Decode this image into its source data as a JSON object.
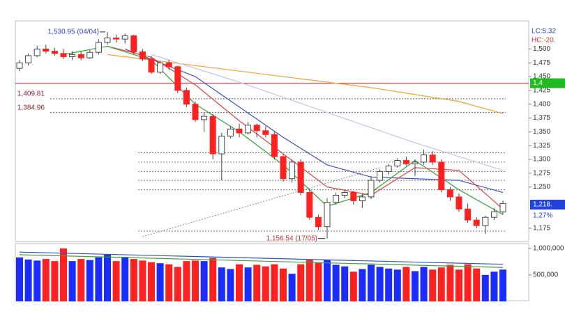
{
  "chart_data": {
    "type": "candlestick",
    "ohlc": {
      "open": [
        1465,
        1475,
        1488,
        1500,
        1496,
        1492,
        1486,
        1490,
        1484,
        1494,
        1512,
        1520,
        1518,
        1524,
        1495,
        1482,
        1458,
        1475,
        1468,
        1425,
        1400,
        1372,
        1378,
        1310,
        1342,
        1355,
        1348,
        1362,
        1352,
        1345,
        1305,
        1265,
        1295,
        1240,
        1195,
        1178,
        1222,
        1235,
        1240,
        1225,
        1232,
        1262,
        1278,
        1288,
        1298,
        1292,
        1295,
        1308,
        1295,
        1245,
        1232,
        1210,
        1190,
        1180,
        1195,
        1205
      ],
      "high": [
        1480,
        1492,
        1506,
        1508,
        1502,
        1500,
        1496,
        1495,
        1498,
        1518,
        1530.95,
        1526,
        1528,
        1526,
        1500,
        1488,
        1478,
        1480,
        1470,
        1430,
        1405,
        1385,
        1382,
        1348,
        1360,
        1365,
        1368,
        1365,
        1360,
        1350,
        1310,
        1300,
        1300,
        1245,
        1200,
        1230,
        1240,
        1245,
        1242,
        1238,
        1270,
        1282,
        1292,
        1302,
        1305,
        1300,
        1318,
        1315,
        1300,
        1250,
        1238,
        1220,
        1195,
        1198,
        1212,
        1225
      ],
      "low": [
        1460,
        1470,
        1485,
        1492,
        1488,
        1482,
        1480,
        1480,
        1482,
        1490,
        1508,
        1512,
        1510,
        1490,
        1478,
        1455,
        1455,
        1462,
        1420,
        1395,
        1368,
        1350,
        1300,
        1262,
        1338,
        1340,
        1345,
        1340,
        1340,
        1300,
        1260,
        1258,
        1235,
        1190,
        1172,
        1156.54,
        1218,
        1230,
        1218,
        1212,
        1228,
        1258,
        1272,
        1285,
        1288,
        1270,
        1290,
        1290,
        1240,
        1225,
        1205,
        1185,
        1175,
        1165,
        1190,
        1200
      ],
      "close": [
        1475,
        1488,
        1500,
        1496,
        1492,
        1486,
        1490,
        1484,
        1494,
        1512,
        1520,
        1518,
        1524,
        1495,
        1482,
        1458,
        1475,
        1468,
        1425,
        1400,
        1372,
        1378,
        1310,
        1342,
        1355,
        1348,
        1362,
        1352,
        1345,
        1305,
        1265,
        1295,
        1240,
        1195,
        1178,
        1222,
        1235,
        1240,
        1225,
        1232,
        1262,
        1278,
        1288,
        1298,
        1292,
        1295,
        1308,
        1295,
        1245,
        1232,
        1210,
        1190,
        1180,
        1195,
        1205,
        1220
      ]
    },
    "up_color": "#ffffff",
    "down_color": "#ff2020",
    "volume": [
      830000,
      790000,
      770000,
      800000,
      760000,
      1000000,
      760000,
      800000,
      780000,
      830000,
      880000,
      760000,
      840000,
      800000,
      770000,
      740000,
      720000,
      700000,
      650000,
      760000,
      770000,
      760000,
      820000,
      640000,
      610000,
      700000,
      640000,
      690000,
      660000,
      700000,
      620000,
      520000,
      700000,
      780000,
      730000,
      780000,
      690000,
      660000,
      560000,
      610000,
      690000,
      650000,
      620000,
      600000,
      650000,
      570000,
      650000,
      600000,
      640000,
      690000,
      600000,
      700000,
      620000,
      500000,
      560000,
      600000
    ],
    "volume_up_color": "#1a2cff",
    "volume_down_color": "#ff2020",
    "volume_ma": [
      {
        "color": "#3050d0",
        "x": [
          0,
          55
        ],
        "values": [
          930000,
          700000
        ]
      },
      {
        "color": "#40a040",
        "x": [
          0,
          55
        ],
        "values": [
          880000,
          640000
        ]
      }
    ],
    "ma_lines": [
      {
        "color": "#f0a030",
        "x": [
          10,
          20,
          30,
          40,
          50,
          55
        ],
        "values": [
          1490,
          1470,
          1450,
          1430,
          1405,
          1383
        ]
      },
      {
        "color": "#c8c0f0",
        "x": [
          15,
          25,
          35,
          45,
          55
        ],
        "values": [
          1490,
          1440,
          1385,
          1330,
          1280
        ]
      },
      {
        "color": "#4050c0",
        "x": [
          12,
          20,
          25,
          30,
          35,
          40,
          45,
          50,
          55
        ],
        "values": [
          1500,
          1450,
          1395,
          1340,
          1290,
          1268,
          1265,
          1262,
          1240
        ]
      },
      {
        "color": "#e04040",
        "x": [
          10,
          15,
          20,
          25,
          30,
          35,
          40,
          45,
          50,
          55
        ],
        "values": [
          1505,
          1485,
          1435,
          1370,
          1310,
          1250,
          1235,
          1285,
          1280,
          1210
        ]
      },
      {
        "color": "#30a030",
        "x": [
          5,
          10,
          15,
          20,
          25,
          30,
          35,
          40,
          45,
          50,
          55
        ],
        "values": [
          1490,
          1505,
          1480,
          1400,
          1350,
          1290,
          1215,
          1240,
          1298,
          1245,
          1200
        ]
      }
    ],
    "ylim": [
      1153,
      1551
    ],
    "yticks": [
      {
        "value": 1500,
        "label": "1,500"
      },
      {
        "value": 1475,
        "label": "1,475"
      },
      {
        "value": 1450,
        "label": "1,450"
      },
      {
        "value": 1425,
        "label": "1,425"
      },
      {
        "value": 1400,
        "label": "1,400"
      },
      {
        "value": 1375,
        "label": "1,375"
      },
      {
        "value": 1350,
        "label": "1,350"
      },
      {
        "value": 1325,
        "label": "1,325"
      },
      {
        "value": 1300,
        "label": "1,300"
      },
      {
        "value": 1275,
        "label": "1,275"
      },
      {
        "value": 1250,
        "label": "1,250"
      },
      {
        "value": 1175,
        "label": "1,175"
      }
    ],
    "volume_ylim": [
      0,
      1090000
    ],
    "volume_ticks": [
      {
        "value": 1000000,
        "label": "1,000,000"
      },
      {
        "value": 500000,
        "label": "500,000"
      }
    ],
    "levels": [
      {
        "value": 1409.81,
        "label": "1,409.81"
      },
      {
        "value": 1384.96,
        "label": "1,384.96"
      }
    ],
    "short_levels": [
      1312,
      1295,
      1278,
      1262,
      1245,
      1170
    ],
    "red_level": 1438,
    "red_level_label": "1,4",
    "trendline": {
      "x": [
        14,
        41
      ],
      "values": [
        1160,
        1285
      ]
    },
    "high_annotation": {
      "index": 10,
      "value": 1530.95,
      "label": "1,530.95 (04/04)"
    },
    "low_annotation": {
      "index": 35,
      "value": 1156.54,
      "label": "1,156.54 (17/05)"
    },
    "lc_label": "LC:5.32",
    "hc_label": "HC:-20.",
    "current_price": 1218,
    "current_label": "1,218.",
    "change_label": "1,27%"
  }
}
